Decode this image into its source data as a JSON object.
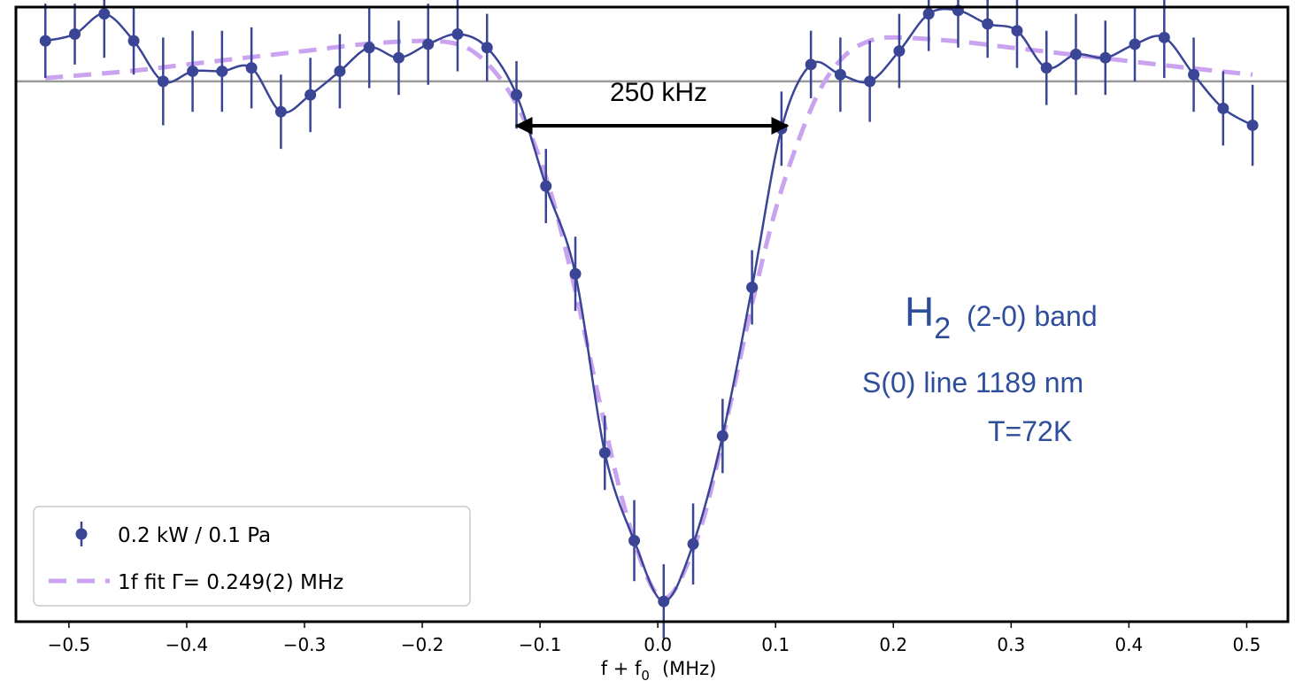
{
  "chart_data": {
    "type": "line",
    "xlabel_main": "f + f",
    "xlabel_sub": "0",
    "xlabel_unit": "(MHz)",
    "xlim": [
      -0.545,
      0.535
    ],
    "ylim": [
      -1.6,
      0.22
    ],
    "baseline": 0,
    "grid": false,
    "legend_position": "bottom-left",
    "x_ticks": [
      -0.5,
      -0.4,
      -0.3,
      -0.2,
      -0.1,
      0.0,
      0.1,
      0.2,
      0.3,
      0.4,
      0.5
    ],
    "x_tick_labels": [
      "−0.5",
      "−0.4",
      "−0.3",
      "−0.2",
      "−0.1",
      "0.0",
      "0.1",
      "0.2",
      "0.3",
      "0.4",
      "0.5"
    ],
    "series": [
      {
        "name": "0.2 kW / 0.1 Pa",
        "color": "#3a4596",
        "x": [
          -0.52,
          -0.495,
          -0.47,
          -0.445,
          -0.42,
          -0.395,
          -0.37,
          -0.345,
          -0.32,
          -0.295,
          -0.27,
          -0.245,
          -0.22,
          -0.195,
          -0.17,
          -0.145,
          -0.12,
          -0.095,
          -0.07,
          -0.045,
          -0.02,
          0.005,
          0.03,
          0.055,
          0.08,
          0.105,
          0.13,
          0.155,
          0.18,
          0.205,
          0.23,
          0.255,
          0.28,
          0.305,
          0.33,
          0.355,
          0.38,
          0.405,
          0.43,
          0.455,
          0.48,
          0.505
        ],
        "y": [
          0.12,
          0.14,
          0.2,
          0.12,
          0.0,
          0.03,
          0.03,
          0.04,
          -0.09,
          -0.04,
          0.03,
          0.1,
          0.07,
          0.11,
          0.14,
          0.1,
          -0.04,
          -0.31,
          -0.57,
          -1.1,
          -1.36,
          -1.54,
          -1.37,
          -1.05,
          -0.61,
          -0.14,
          0.05,
          0.02,
          0.0,
          0.09,
          0.2,
          0.21,
          0.17,
          0.15,
          0.04,
          0.08,
          0.07,
          0.11,
          0.13,
          0.02,
          -0.08,
          -0.13
        ],
        "err": [
          0.11,
          0.09,
          0.13,
          0.1,
          0.13,
          0.12,
          0.12,
          0.12,
          0.11,
          0.11,
          0.11,
          0.12,
          0.11,
          0.12,
          0.11,
          0.1,
          0.1,
          0.11,
          0.11,
          0.11,
          0.12,
          0.11,
          0.12,
          0.11,
          0.11,
          0.11,
          0.1,
          0.11,
          0.12,
          0.11,
          0.11,
          0.11,
          0.1,
          0.11,
          0.11,
          0.12,
          0.11,
          0.11,
          0.12,
          0.11,
          0.11,
          0.12
        ]
      },
      {
        "name": "1f fit Γ= 0.249(2) MHz",
        "color": "#c9a3f0",
        "style": "dashed",
        "x": [
          -0.52,
          -0.45,
          -0.4,
          -0.35,
          -0.3,
          -0.25,
          -0.2,
          -0.17,
          -0.15,
          -0.13,
          -0.11,
          -0.09,
          -0.07,
          -0.05,
          -0.03,
          -0.01,
          0.005,
          0.02,
          0.04,
          0.06,
          0.08,
          0.1,
          0.12,
          0.14,
          0.16,
          0.18,
          0.2,
          0.25,
          0.3,
          0.35,
          0.4,
          0.45,
          0.505
        ],
        "y": [
          0.01,
          0.03,
          0.05,
          0.07,
          0.09,
          0.11,
          0.12,
          0.11,
          0.07,
          -0.01,
          -0.14,
          -0.34,
          -0.62,
          -0.94,
          -1.24,
          -1.46,
          -1.53,
          -1.47,
          -1.28,
          -0.98,
          -0.66,
          -0.38,
          -0.17,
          -0.01,
          0.08,
          0.12,
          0.13,
          0.12,
          0.1,
          0.08,
          0.06,
          0.04,
          0.02
        ]
      }
    ],
    "annotations": {
      "width_label": "250 kHz",
      "width_arrow_x": [
        -0.12,
        0.11
      ],
      "line_species": "H",
      "line_species_sub": "2",
      "line_band": "(2-0) band",
      "line_name": "S(0) line 1189 nm",
      "temperature": "T=72K"
    }
  }
}
